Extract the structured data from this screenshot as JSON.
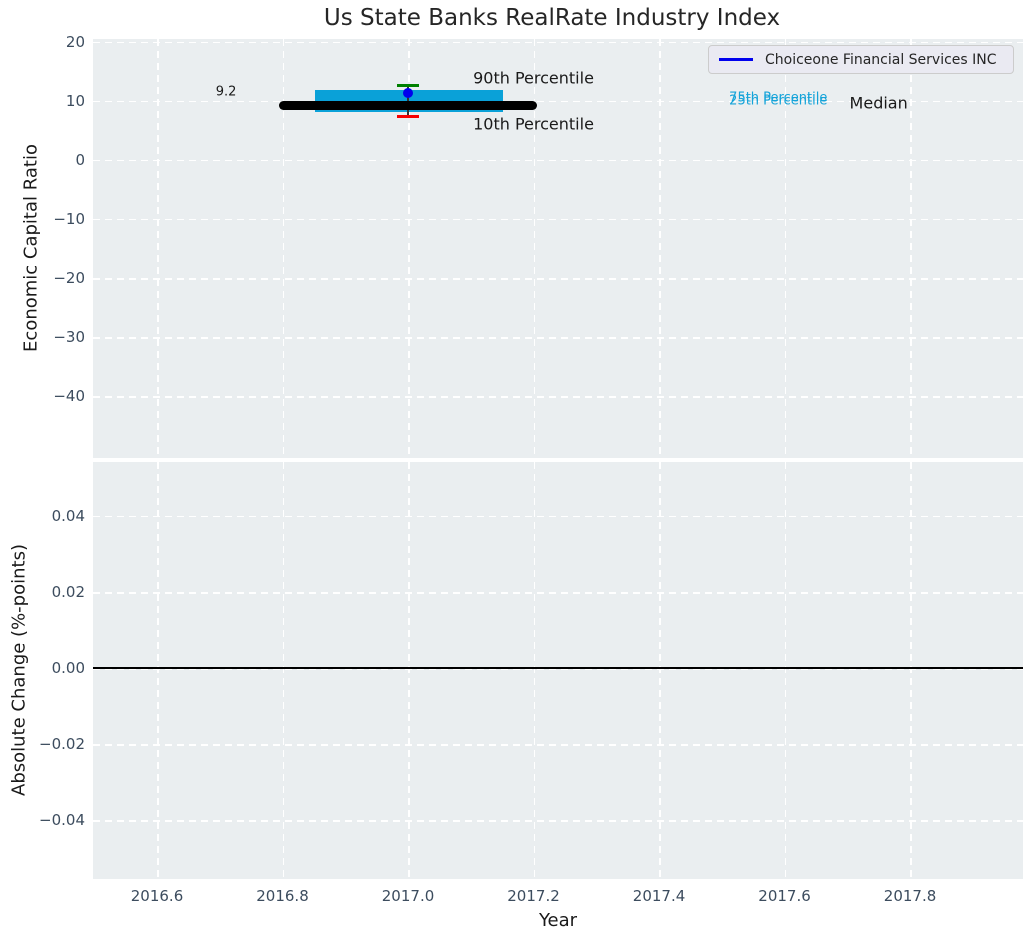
{
  "title": "Us State Banks RealRate Industry Index",
  "legend": {
    "label": "Choiceone Financial Services INC"
  },
  "colors": {
    "figure_bg": "#ffffff",
    "plot_bg": "#eaeef0",
    "grid": "#ffffff",
    "tick_label": "#3c4c5e",
    "axis_label": "#1a1a1a",
    "box_fill": "#0aa1d8",
    "median_band": "#000000",
    "p90_cap": "#008000",
    "p10_cap": "#f50000",
    "company_dot": "#0000ee",
    "whisker": "#333333",
    "zero_line": "#000000",
    "legend_line": "#0000ee",
    "annotation_cyan": "#14a3d9"
  },
  "chart_data": [
    {
      "type": "boxplot",
      "subplot": "top",
      "title": "Us State Banks RealRate Industry Index",
      "xlabel": "",
      "ylabel": "Economic Capital Ratio",
      "grid": true,
      "legend_position": "upper right",
      "xlim": [
        2016.498,
        2017.98
      ],
      "ylim": [
        -50.5,
        20.5
      ],
      "yticks": [
        {
          "v": 20,
          "label": "20"
        },
        {
          "v": 10,
          "label": "10"
        },
        {
          "v": 0,
          "label": "0"
        },
        {
          "v": -10,
          "label": "−10"
        },
        {
          "v": -20,
          "label": "−20"
        },
        {
          "v": -30,
          "label": "−30"
        },
        {
          "v": -40,
          "label": "−40"
        }
      ],
      "series_name": "Choiceone Financial Services INC",
      "box": {
        "x": 2017.0,
        "median": 9.2,
        "median_label": "9.2",
        "p75": 11.9,
        "p25": 8.1,
        "p90": 12.6,
        "p10": 7.4,
        "company_value": 11.4,
        "median_span": [
          2016.795,
          2017.205
        ],
        "box_span": [
          2016.852,
          2017.152
        ],
        "cap_span": [
          2016.982,
          2017.017
        ]
      },
      "annotations": [
        {
          "text": "9.2",
          "x": 2016.71,
          "y": 11.6,
          "size": 13,
          "color": "#1a1a1a"
        },
        {
          "text": "90th Percentile",
          "x": 2017.2,
          "y": 13.9,
          "size": 16,
          "color": "#1a1a1a"
        },
        {
          "text": "10th Percentile",
          "x": 2017.2,
          "y": 6.1,
          "size": 16,
          "color": "#1a1a1a"
        },
        {
          "text": "75th Percentile",
          "x": 2017.59,
          "y": 10.45,
          "size": 13,
          "color": "#14a3d9"
        },
        {
          "text": "25th Percentile",
          "x": 2017.59,
          "y": 10.0,
          "size": 13,
          "color": "#14a3d9"
        },
        {
          "text": "Median",
          "x": 2017.75,
          "y": 9.65,
          "size": 16,
          "color": "#1a1a1a"
        }
      ]
    },
    {
      "type": "line",
      "subplot": "bottom",
      "xlabel": "Year",
      "ylabel": "Absolute Change (%-points)",
      "grid": true,
      "xlim": [
        2016.498,
        2017.98
      ],
      "ylim": [
        -0.0555,
        0.0542
      ],
      "zero_line": 0.0,
      "xticks": [
        {
          "v": 2016.6,
          "label": "2016.6"
        },
        {
          "v": 2016.8,
          "label": "2016.8"
        },
        {
          "v": 2017.0,
          "label": "2017.0"
        },
        {
          "v": 2017.2,
          "label": "2017.2"
        },
        {
          "v": 2017.4,
          "label": "2017.4"
        },
        {
          "v": 2017.6,
          "label": "2017.6"
        },
        {
          "v": 2017.8,
          "label": "2017.8"
        }
      ],
      "yticks": [
        {
          "v": 0.04,
          "label": "0.04"
        },
        {
          "v": 0.02,
          "label": "0.02"
        },
        {
          "v": 0.0,
          "label": "0.00"
        },
        {
          "v": -0.02,
          "label": "−0.02"
        },
        {
          "v": -0.04,
          "label": "−0.04"
        }
      ]
    }
  ]
}
